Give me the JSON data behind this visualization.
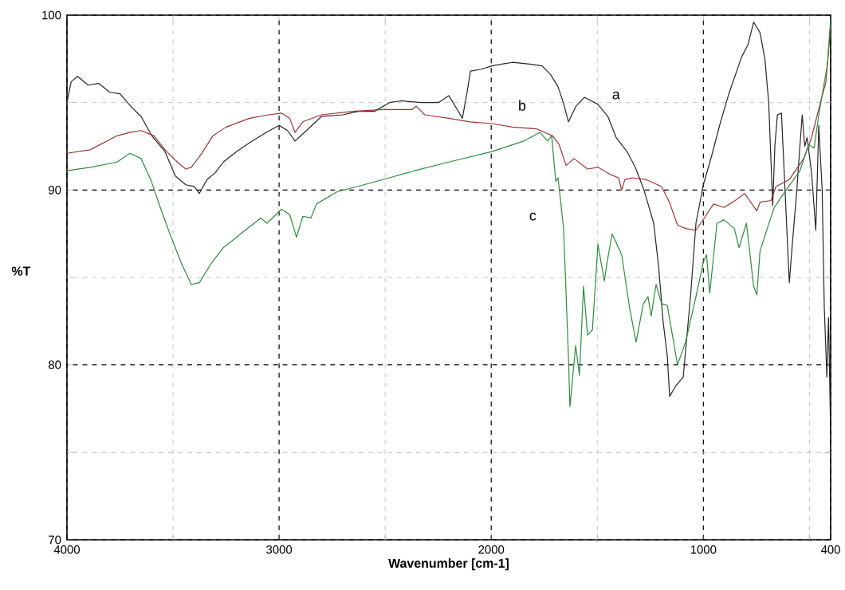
{
  "chart_data": {
    "type": "line",
    "xlabel": "Wavenumber [cm-1]",
    "ylabel": "%T",
    "xlim": [
      4000,
      400
    ],
    "ylim": [
      70,
      100
    ],
    "xticks": [
      4000,
      {
        "value": 3500,
        "label": null
      },
      3000,
      {
        "value": 2500,
        "label": null
      },
      2000,
      {
        "value": 1500,
        "label": null
      },
      1000,
      {
        "value": 500,
        "label": null
      },
      400
    ],
    "yticks": [
      70,
      {
        "value": 75,
        "label": null
      },
      80,
      {
        "value": 85,
        "label": null
      },
      90,
      {
        "value": 95,
        "label": null
      },
      100
    ],
    "grid": true,
    "annotations": [
      "a",
      "b",
      "c"
    ],
    "series": [
      {
        "color": "#262626",
        "x": [
          4000,
          3980,
          3950,
          3900,
          3850,
          3800,
          3750,
          3700,
          3650,
          3600,
          3538,
          3489,
          3440,
          3400,
          3376,
          3340,
          3300,
          3263,
          3200,
          3139,
          3060,
          3000,
          2960,
          2925,
          2880,
          2801,
          2700,
          2625,
          2550,
          2480,
          2425,
          2330,
          2249,
          2200,
          2170,
          2136,
          2115,
          2098,
          2050,
          1997,
          1950,
          1899,
          1820,
          1760,
          1720,
          1685,
          1660,
          1636,
          1600,
          1561,
          1497,
          1450,
          1411,
          1360,
          1321,
          1280,
          1234,
          1210,
          1190,
          1170,
          1159,
          1130,
          1095,
          1060,
          1035,
          1000,
          960,
          921,
          880,
          820,
          790,
          763,
          733,
          710,
          692,
          673,
          663,
          651,
          632,
          615,
          595,
          580,
          560,
          545,
          534,
          522,
          511,
          490,
          470,
          456,
          440,
          430,
          418,
          410,
          400
        ],
        "values": [
          95.0,
          96.2,
          96.5,
          96.0,
          96.1,
          95.6,
          95.5,
          94.8,
          94.2,
          93.1,
          92.2,
          90.8,
          90.3,
          90.2,
          89.8,
          90.6,
          91.0,
          91.6,
          92.2,
          92.7,
          93.3,
          93.7,
          93.4,
          92.8,
          93.3,
          94.2,
          94.3,
          94.5,
          94.5,
          95.0,
          95.1,
          95.0,
          95.0,
          95.4,
          94.8,
          94.1,
          95.5,
          96.8,
          96.9,
          97.1,
          97.2,
          97.3,
          97.2,
          97.1,
          96.6,
          95.9,
          95.0,
          93.9,
          94.8,
          95.3,
          94.9,
          94.2,
          93.0,
          92.2,
          91.3,
          90.0,
          88.1,
          85.5,
          82.5,
          80.5,
          78.2,
          78.8,
          79.3,
          84.0,
          88.1,
          90.3,
          92.0,
          93.8,
          95.5,
          97.6,
          98.3,
          99.6,
          99.0,
          97.5,
          95.0,
          89.1,
          92.5,
          94.3,
          94.4,
          90.0,
          84.7,
          87.0,
          89.9,
          92.5,
          94.3,
          92.5,
          93.0,
          91.0,
          87.7,
          93.7,
          90.0,
          83.3,
          79.3,
          82.7,
          76.0
        ]
      },
      {
        "color": "#9b3535",
        "x": [
          4000,
          3891,
          3764,
          3700,
          3651,
          3590,
          3538,
          3480,
          3440,
          3414,
          3370,
          3312,
          3250,
          3139,
          3050,
          2989,
          2950,
          2925,
          2888,
          2801,
          2650,
          2512,
          2373,
          2354,
          2313,
          2200,
          2100,
          1997,
          1900,
          1787,
          1711,
          1680,
          1647,
          1610,
          1546,
          1497,
          1440,
          1400,
          1385,
          1370,
          1336,
          1270,
          1197,
          1160,
          1122,
          1084,
          1035,
          990,
          952,
          903,
          850,
          805,
          748,
          733,
          681,
          658,
          595,
          527,
          490,
          463,
          422,
          400
        ],
        "values": [
          92.1,
          92.3,
          93.1,
          93.3,
          93.4,
          93.1,
          92.3,
          91.6,
          91.2,
          91.3,
          92.0,
          93.1,
          93.6,
          94.1,
          94.3,
          94.4,
          94.1,
          93.3,
          93.9,
          94.3,
          94.5,
          94.6,
          94.6,
          94.8,
          94.3,
          94.1,
          93.9,
          93.8,
          93.6,
          93.5,
          93.1,
          92.6,
          91.4,
          91.8,
          91.2,
          91.3,
          90.9,
          90.7,
          90.0,
          90.6,
          90.7,
          90.6,
          90.2,
          89.3,
          88.0,
          87.8,
          87.7,
          88.5,
          89.2,
          89.0,
          89.4,
          89.8,
          88.8,
          89.3,
          89.4,
          90.2,
          90.6,
          91.8,
          93.0,
          94.3,
          96.2,
          99.4
        ]
      },
      {
        "color": "#2e8b3e",
        "x": [
          4000,
          3891,
          3764,
          3703,
          3651,
          3602,
          3560,
          3515,
          3460,
          3414,
          3376,
          3320,
          3263,
          3170,
          3087,
          3057,
          2989,
          2950,
          2918,
          2888,
          2850,
          2824,
          2726,
          2600,
          2480,
          2362,
          2200,
          1997,
          1846,
          1771,
          1734,
          1715,
          1696,
          1685,
          1659,
          1636,
          1629,
          1602,
          1584,
          1565,
          1546,
          1523,
          1497,
          1467,
          1452,
          1430,
          1385,
          1347,
          1317,
          1283,
          1261,
          1246,
          1223,
          1197,
          1170,
          1122,
          1084,
          1035,
          1000,
          985,
          970,
          936,
          903,
          854,
          832,
          797,
          763,
          748,
          733,
          707,
          666,
          610,
          545,
          504,
          478,
          456,
          415,
          400
        ],
        "values": [
          91.1,
          91.3,
          91.6,
          92.1,
          91.8,
          90.5,
          89.0,
          87.5,
          85.8,
          84.6,
          84.7,
          85.8,
          86.7,
          87.6,
          88.4,
          88.1,
          88.9,
          88.6,
          87.3,
          88.5,
          88.4,
          89.2,
          89.9,
          90.3,
          90.7,
          91.1,
          91.6,
          92.2,
          92.8,
          93.3,
          92.8,
          93.1,
          90.5,
          90.7,
          87.8,
          80.5,
          77.6,
          81.1,
          79.4,
          84.5,
          81.7,
          82.0,
          86.9,
          84.8,
          86.0,
          87.5,
          86.3,
          83.2,
          81.3,
          83.5,
          83.9,
          82.8,
          84.6,
          83.5,
          83.4,
          80.0,
          81.3,
          83.9,
          85.9,
          86.3,
          84.1,
          88.1,
          88.3,
          87.8,
          86.7,
          88.1,
          84.5,
          84.0,
          86.5,
          87.5,
          89.0,
          90.0,
          91.1,
          92.6,
          92.4,
          94.3,
          97.2,
          99.8
        ]
      }
    ]
  }
}
